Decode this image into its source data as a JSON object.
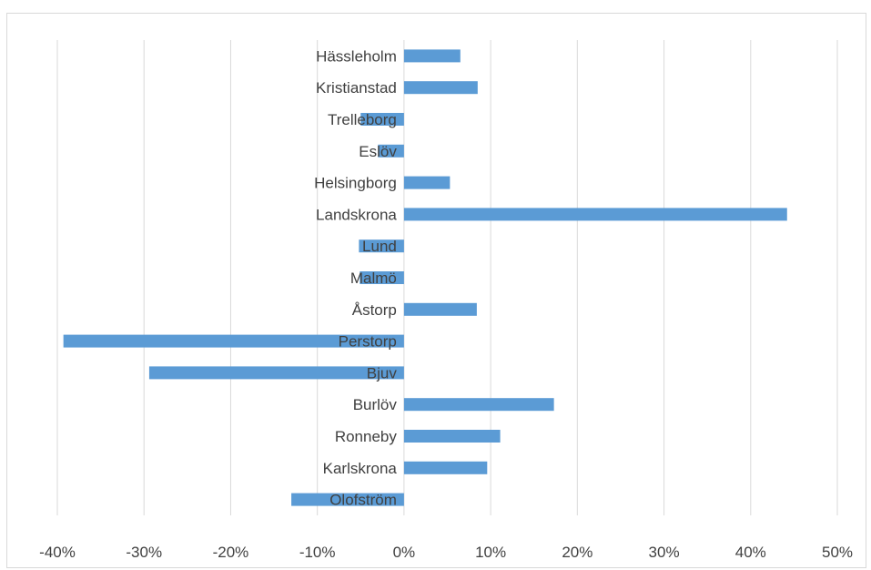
{
  "chart_data": {
    "type": "bar",
    "orientation": "horizontal",
    "categories": [
      "Hässleholm",
      "Kristianstad",
      "Trelleborg",
      "Eslöv",
      "Helsingborg",
      "Landskrona",
      "Lund",
      "Malmö",
      "Åstorp",
      "Perstorp",
      "Bjuv",
      "Burlöv",
      "Ronneby",
      "Karlskrona",
      "Olofström"
    ],
    "values": [
      6.5,
      8.5,
      -5,
      -3,
      5.3,
      44.2,
      -5.2,
      -5.1,
      8.4,
      -39.3,
      -29.4,
      17.3,
      11.1,
      9.6,
      -13
    ],
    "xlim": [
      -40,
      50
    ],
    "xticks": [
      "-40%",
      "-30%",
      "-20%",
      "-10%",
      "0%",
      "10%",
      "20%",
      "30%",
      "40%",
      "50%"
    ],
    "grid": "vertical",
    "legend": "none",
    "bar_color": "#5b9bd5",
    "grid_color": "#d9d9d9",
    "text_color": "#404040"
  }
}
